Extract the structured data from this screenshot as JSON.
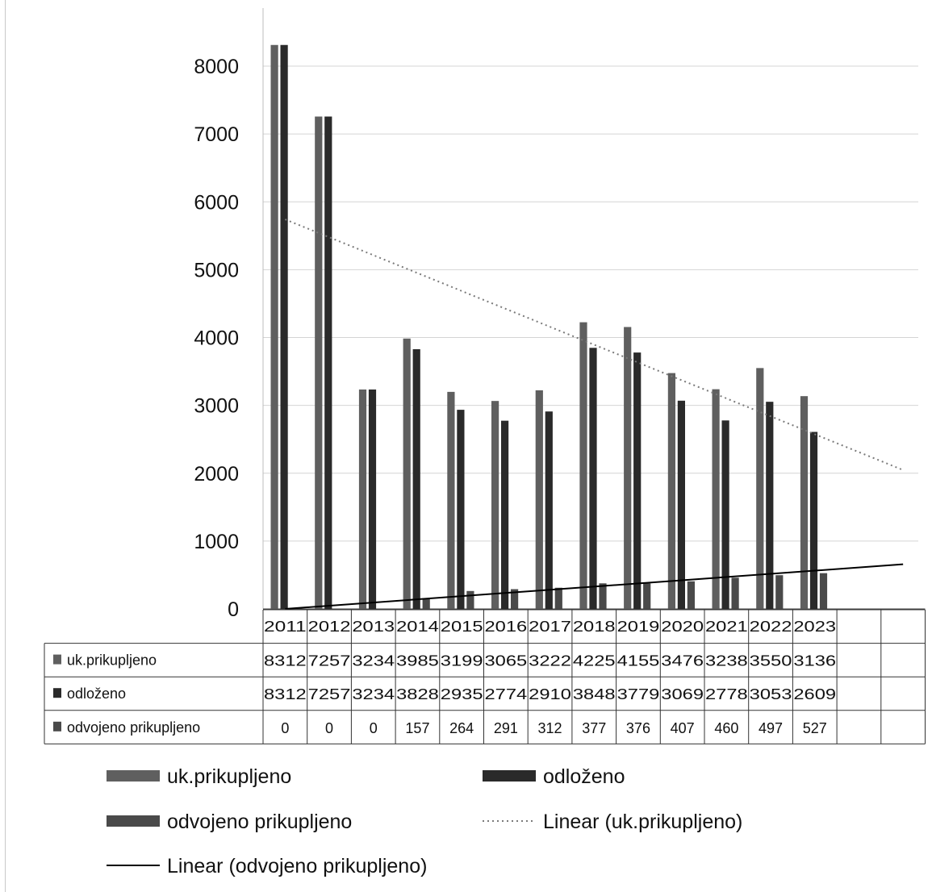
{
  "chart_data": {
    "type": "bar",
    "categories": [
      "2011",
      "2012",
      "2013",
      "2014",
      "2015",
      "2016",
      "2017",
      "2018",
      "2019",
      "2020",
      "2021",
      "2022",
      "2023"
    ],
    "extra_empty_columns": 2,
    "ylim": [
      0,
      8000
    ],
    "ytick_step": 1000,
    "ytick_labels": [
      "0",
      "1000",
      "2000",
      "3000",
      "4000",
      "5000",
      "6000",
      "7000",
      "8000"
    ],
    "grid": true,
    "legend_placement": "bottom",
    "series": [
      {
        "name": "uk.prikupljeno",
        "color": "#5f5f5f",
        "values": [
          8312,
          7257,
          3234,
          3985,
          3199,
          3065,
          3222,
          4225,
          4155,
          3476,
          3238,
          3550,
          3136
        ]
      },
      {
        "name": "odloženo",
        "color": "#2a2a2a",
        "values": [
          8312,
          7257,
          3234,
          3828,
          2935,
          2774,
          2910,
          3848,
          3779,
          3069,
          2778,
          3053,
          2609
        ]
      },
      {
        "name": "odvojeno prikupljeno",
        "color": "#4a4a4a",
        "values": [
          0,
          0,
          0,
          157,
          264,
          291,
          312,
          377,
          376,
          407,
          460,
          497,
          527
        ]
      }
    ],
    "trendlines": [
      {
        "name": "Linear (uk.prikupljeno)",
        "style": "dotted",
        "color": "#7a7a7a"
      },
      {
        "name": "Linear (odvojeno prikupljeno)",
        "style": "solid",
        "color": "#000000"
      }
    ]
  }
}
